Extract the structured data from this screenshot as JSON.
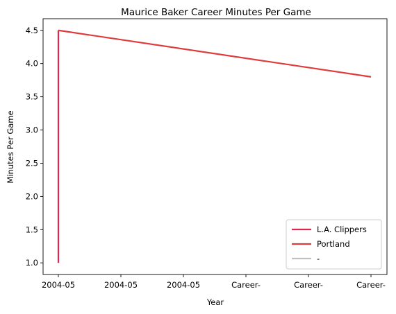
{
  "chart_data": {
    "type": "line",
    "title": "Maurice Baker Career Minutes Per Game",
    "xlabel": "Year",
    "ylabel": "Minutes Per Game",
    "x_tick_labels": [
      "2004-05",
      "2004-05",
      "2004-05",
      "Career-",
      "Career-",
      "Career-"
    ],
    "y_ticks": [
      1.0,
      1.5,
      2.0,
      2.5,
      3.0,
      3.5,
      4.0,
      4.5
    ],
    "y_tick_labels": [
      "1.0",
      "1.5",
      "2.0",
      "2.5",
      "3.0",
      "3.5",
      "4.0",
      "4.5"
    ],
    "ylim": [
      0.825,
      4.675
    ],
    "grid": false,
    "legend_position": "lower-right",
    "series": [
      {
        "name": "L.A. Clippers",
        "color": "#dc2850",
        "points": [
          {
            "x": "2004-05",
            "y": 1.0
          },
          {
            "x": "2004-05",
            "y": 4.5
          }
        ]
      },
      {
        "name": "Portland",
        "color": "#de3c3c",
        "points": [
          {
            "x": "2004-05",
            "y": 4.5
          },
          {
            "x": "Career-",
            "y": 3.8
          }
        ]
      },
      {
        "name": "-",
        "color": "#c0c0c0",
        "points": []
      }
    ]
  }
}
